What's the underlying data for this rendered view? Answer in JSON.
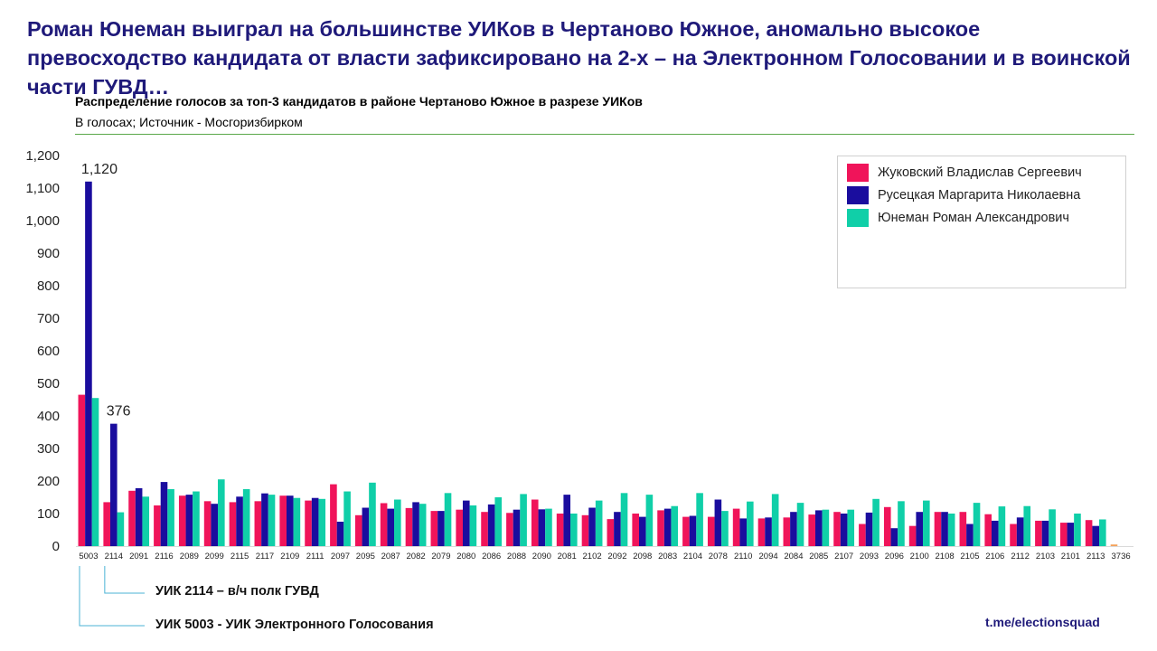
{
  "headline": "Роман Юнеман выиграл на большинстве УИКов в Чертаново Южное, аномально высокое превосходство кандидата от власти зафиксировано на 2-х – на Электронном Голосовании и в воинской части ГУВД…",
  "subtitle": "Распределение голосов за топ-3 кандидатов в районе Чертаново Южное в разрезе УИКов",
  "subsubtitle": "В голосах; Источник - Мосгоризбирком",
  "callouts": {
    "uik2114": "УИК 2114 – в/ч полк ГУВД",
    "uik5003": "УИК 5003 - УИК Электронного Голосования"
  },
  "watermark": "t.me/electionsquad",
  "chart_data": {
    "type": "bar",
    "title": "Распределение голосов за топ-3 кандидатов в районе Чертаново Южное в разрезе УИКов",
    "ylim": [
      0,
      1200
    ],
    "yticks": [
      "0",
      "100",
      "200",
      "300",
      "400",
      "500",
      "600",
      "700",
      "800",
      "900",
      "1,000",
      "1,100",
      "1,200"
    ],
    "ytick_values": [
      0,
      100,
      200,
      300,
      400,
      500,
      600,
      700,
      800,
      900,
      1000,
      1100,
      1200
    ],
    "grid": false,
    "legend_position": "top-right",
    "categories": [
      "5003",
      "2114",
      "2091",
      "2116",
      "2089",
      "2099",
      "2115",
      "2117",
      "2109",
      "2111",
      "2097",
      "2095",
      "2087",
      "2082",
      "2079",
      "2080",
      "2086",
      "2088",
      "2090",
      "2081",
      "2102",
      "2092",
      "2098",
      "2083",
      "2104",
      "2078",
      "2110",
      "2094",
      "2084",
      "2085",
      "2107",
      "2093",
      "2096",
      "2100",
      "2108",
      "2105",
      "2106",
      "2112",
      "2103",
      "2101",
      "2113",
      "3736"
    ],
    "series": [
      {
        "name": "Жуковский Владислав Сергеевич",
        "color": "#f0145a",
        "values": [
          465,
          135,
          170,
          125,
          155,
          138,
          135,
          138,
          155,
          140,
          190,
          95,
          132,
          117,
          108,
          112,
          105,
          102,
          143,
          100,
          95,
          83,
          100,
          110,
          90,
          90,
          115,
          85,
          88,
          97,
          105,
          68,
          120,
          62,
          105,
          105,
          98,
          68,
          78,
          72,
          80,
          5
        ]
      },
      {
        "name": "Русецкая Маргарита Николаевна",
        "color": "#1a0d9e",
        "values": [
          1120,
          376,
          178,
          197,
          158,
          130,
          152,
          162,
          155,
          148,
          75,
          118,
          115,
          135,
          108,
          140,
          128,
          112,
          113,
          158,
          118,
          105,
          90,
          115,
          93,
          143,
          85,
          88,
          105,
          110,
          100,
          103,
          55,
          105,
          105,
          68,
          78,
          88,
          78,
          72,
          62,
          0
        ]
      },
      {
        "name": "Юнеман Роман Александрович",
        "color": "#10cfa8",
        "values": [
          455,
          104,
          152,
          175,
          168,
          205,
          175,
          158,
          148,
          145,
          168,
          195,
          143,
          130,
          163,
          125,
          150,
          160,
          115,
          100,
          140,
          163,
          158,
          123,
          163,
          108,
          137,
          160,
          133,
          112,
          112,
          145,
          138,
          140,
          100,
          133,
          122,
          123,
          113,
          100,
          82,
          0
        ]
      }
    ],
    "data_labels": [
      {
        "category": "5003",
        "series": "Русецкая Маргарита Николаевна",
        "text": "1,120"
      },
      {
        "category": "2114",
        "series": "Русецкая Маргарита Николаевна",
        "text": "376"
      }
    ]
  }
}
